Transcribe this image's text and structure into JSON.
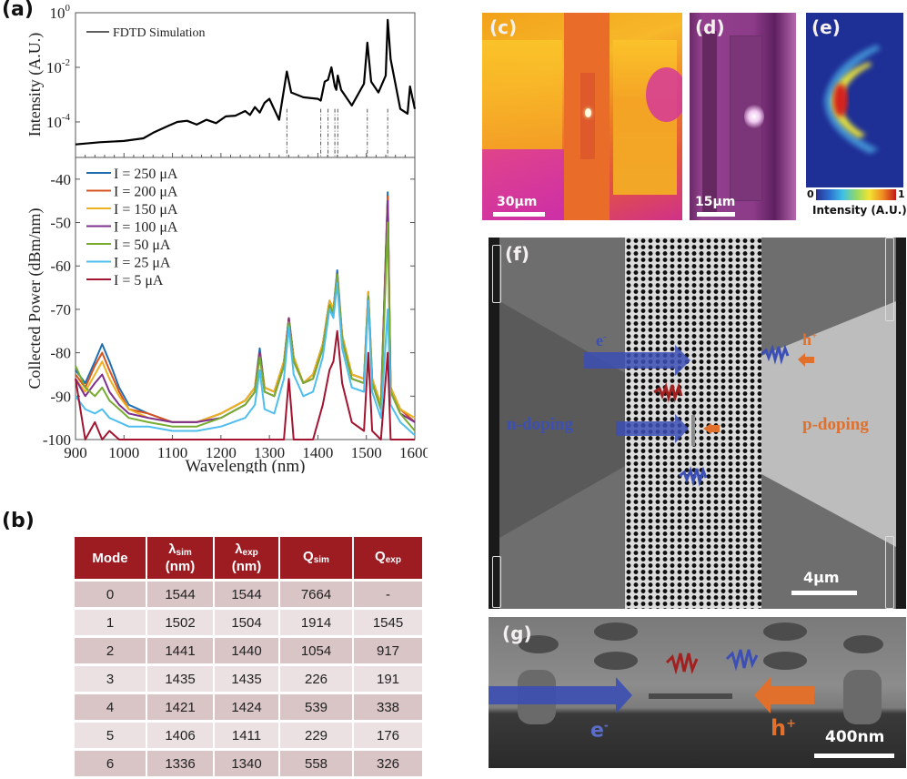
{
  "panels": {
    "a": "(a)",
    "b": "(b)",
    "c": "(c)",
    "d": "(d)",
    "e": "(e)",
    "f": "(f)",
    "g": "(g)"
  },
  "chart_data": [
    {
      "type": "line",
      "panel": "a-top",
      "title": "",
      "xlabel": "",
      "ylabel": "Intensity (A.U.)",
      "yscale": "log",
      "ylim": [
        5e-06,
        1
      ],
      "xlim": [
        900,
        1600
      ],
      "y_ticks": [
        "10^0",
        "10^-2",
        "10^-4"
      ],
      "legend": [
        "FDTD Simulation"
      ],
      "legend_position": "top-left",
      "series": [
        {
          "name": "FDTD Simulation",
          "color": "#000000",
          "x": [
            900,
            950,
            1000,
            1040,
            1060,
            1090,
            1110,
            1130,
            1150,
            1170,
            1190,
            1210,
            1230,
            1250,
            1260,
            1270,
            1280,
            1290,
            1300,
            1320,
            1336,
            1345,
            1370,
            1400,
            1406,
            1414,
            1421,
            1428,
            1435,
            1438,
            1441,
            1448,
            1470,
            1495,
            1502,
            1510,
            1525,
            1540,
            1544,
            1550,
            1570,
            1585,
            1590,
            1600
          ],
          "y": [
            1.5e-05,
            1.8e-05,
            2e-05,
            2.5e-05,
            4e-05,
            7e-05,
            0.0001,
            0.00011,
            8e-05,
            0.00012,
            9e-05,
            0.00016,
            0.00017,
            0.00025,
            0.00018,
            0.00035,
            0.00022,
            0.0005,
            0.0007,
            0.00012,
            0.007,
            0.0012,
            0.0008,
            0.0007,
            0.0006,
            0.003,
            0.0035,
            0.01,
            0.002,
            0.0015,
            0.005,
            0.0015,
            0.0004,
            0.0025,
            0.08,
            0.003,
            0.0012,
            0.005,
            0.55,
            0.02,
            0.0003,
            0.0002,
            0.002,
            0.0003
          ]
        }
      ],
      "mode_markers_nm": [
        1336,
        1406,
        1421,
        1435,
        1441,
        1502,
        1544
      ]
    },
    {
      "type": "line",
      "panel": "a-bottom",
      "title": "",
      "xlabel": "Wavelength (nm)",
      "ylabel": "Collected Power (dBm/nm)",
      "xlim": [
        900,
        1600
      ],
      "ylim": [
        -100,
        -35
      ],
      "x_ticks": [
        900,
        1000,
        1100,
        1200,
        1300,
        1400,
        1500,
        1600
      ],
      "y_ticks": [
        -40,
        -50,
        -60,
        -70,
        -80,
        -90,
        -100
      ],
      "legend_position": "top-left",
      "x": [
        900,
        920,
        940,
        955,
        970,
        990,
        1010,
        1050,
        1100,
        1150,
        1200,
        1250,
        1270,
        1280,
        1290,
        1310,
        1330,
        1340,
        1350,
        1370,
        1390,
        1410,
        1424,
        1432,
        1440,
        1450,
        1470,
        1495,
        1504,
        1512,
        1530,
        1544,
        1550,
        1570,
        1600
      ],
      "series": [
        {
          "name": "I = 250 μA",
          "color": "#1f6fb0",
          "values": [
            -84,
            -87,
            -82,
            -78,
            -82,
            -88,
            -92,
            -94,
            -96,
            -96,
            -94,
            -91,
            -88,
            -79,
            -88,
            -89,
            -82,
            -72,
            -81,
            -87,
            -85,
            -78,
            -68,
            -70,
            -61,
            -76,
            -85,
            -86,
            -66,
            -86,
            -92,
            -43,
            -88,
            -93,
            -96
          ]
        },
        {
          "name": "I = 200 μA",
          "color": "#d9531e",
          "values": [
            -85,
            -88,
            -83,
            -80,
            -84,
            -89,
            -93,
            -94,
            -96,
            -96,
            -94,
            -91,
            -88,
            -80,
            -88,
            -89,
            -82,
            -72,
            -81,
            -87,
            -85,
            -78,
            -68,
            -70,
            -62,
            -76,
            -85,
            -86,
            -66,
            -86,
            -92,
            -44,
            -88,
            -93,
            -96
          ]
        },
        {
          "name": "I = 150 μA",
          "color": "#edb120",
          "values": [
            -86,
            -89,
            -85,
            -82,
            -86,
            -90,
            -93,
            -95,
            -96,
            -96,
            -94,
            -91,
            -88,
            -80,
            -88,
            -89,
            -82,
            -72,
            -81,
            -87,
            -85,
            -78,
            -68,
            -70,
            -62,
            -76,
            -85,
            -86,
            -66,
            -86,
            -92,
            -45,
            -88,
            -93,
            -95
          ]
        },
        {
          "name": "I = 100 μA",
          "color": "#7e2f8e",
          "values": [
            -86,
            -90,
            -87,
            -85,
            -89,
            -92,
            -94,
            -95,
            -96,
            -96,
            -95,
            -92,
            -89,
            -80,
            -89,
            -90,
            -83,
            -72,
            -82,
            -87,
            -86,
            -79,
            -69,
            -71,
            -62,
            -77,
            -86,
            -87,
            -67,
            -87,
            -93,
            -45,
            -89,
            -94,
            -96
          ]
        },
        {
          "name": "I = 50 μA",
          "color": "#77ac30",
          "values": [
            -83,
            -88,
            -90,
            -88,
            -91,
            -93,
            -95,
            -96,
            -97,
            -97,
            -95,
            -92,
            -89,
            -81,
            -89,
            -90,
            -83,
            -73,
            -82,
            -87,
            -86,
            -79,
            -69,
            -71,
            -62,
            -77,
            -86,
            -87,
            -67,
            -87,
            -93,
            -50,
            -89,
            -94,
            -98
          ]
        },
        {
          "name": "I = 25 μA",
          "color": "#4dbeee",
          "values": [
            -90,
            -93,
            -94,
            -93,
            -95,
            -96,
            -97,
            -97,
            -98,
            -98,
            -97,
            -95,
            -92,
            -84,
            -93,
            -94,
            -86,
            -74,
            -85,
            -90,
            -89,
            -81,
            -70,
            -72,
            -64,
            -79,
            -88,
            -89,
            -68,
            -89,
            -95,
            -70,
            -92,
            -96,
            -99
          ]
        },
        {
          "name": "I = 5 μA",
          "color": "#a2142f",
          "values": [
            -86,
            -100,
            -96,
            -100,
            -98,
            -100,
            -100,
            -100,
            -100,
            -100,
            -100,
            -100,
            -100,
            -100,
            -100,
            -100,
            -100,
            -86,
            -100,
            -100,
            -100,
            -92,
            -84,
            -82,
            -75,
            -87,
            -96,
            -98,
            -80,
            -98,
            -100,
            -80,
            -100,
            -100,
            -100
          ]
        }
      ]
    }
  ],
  "table": {
    "headers": [
      {
        "main": "Mode",
        "sub": "",
        "unit": ""
      },
      {
        "main": "λ",
        "sub": "sim",
        "unit": "(nm)"
      },
      {
        "main": "λ",
        "sub": "exp",
        "unit": "(nm)"
      },
      {
        "main": "Q",
        "sub": "sim",
        "unit": ""
      },
      {
        "main": "Q",
        "sub": "exp",
        "unit": ""
      }
    ],
    "rows": [
      [
        "0",
        "1544",
        "1544",
        "7664",
        "-"
      ],
      [
        "1",
        "1502",
        "1504",
        "1914",
        "1545"
      ],
      [
        "2",
        "1441",
        "1440",
        "1054",
        "917"
      ],
      [
        "3",
        "1435",
        "1435",
        "226",
        "191"
      ],
      [
        "4",
        "1421",
        "1424",
        "539",
        "338"
      ],
      [
        "5",
        "1406",
        "1411",
        "229",
        "176"
      ],
      [
        "6",
        "1336",
        "1340",
        "558",
        "326"
      ]
    ],
    "header_color": "#9c1c22"
  },
  "images": {
    "c": {
      "scale": "30μm"
    },
    "d": {
      "scale": "15μm"
    },
    "e": {
      "colorbar_min": "0",
      "colorbar_max": "1",
      "colorbar_label": "Intensity (A.U.)"
    },
    "f": {
      "scale": "4μm",
      "e_label": "e",
      "e_sup": "-",
      "h_label": "h",
      "h_sup": "+",
      "n_label": "n-doping",
      "p_label": "p-doping"
    },
    "g": {
      "scale": "400nm",
      "e_label": "e",
      "e_sup": "-",
      "h_label": "h",
      "h_sup": "+"
    }
  },
  "colors": {
    "electron": "#3c4fb4",
    "hole": "#e0702c",
    "photon_red": "#a2201f"
  }
}
